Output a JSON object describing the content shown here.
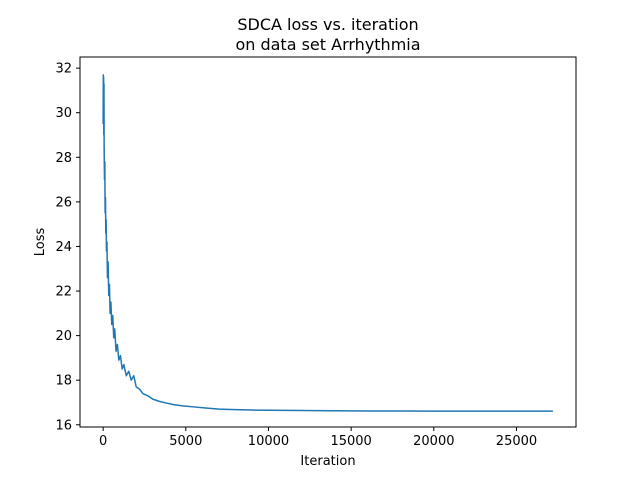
{
  "chart_data": {
    "type": "line",
    "title_lines": [
      "SDCA loss vs. iteration",
      "on data set Arrhythmia"
    ],
    "xlabel": "Iteration",
    "ylabel": "Loss",
    "xlim": [
      -1400,
      28600
    ],
    "ylim": [
      15.9,
      32.5
    ],
    "xticks": [
      0,
      5000,
      10000,
      15000,
      20000,
      25000
    ],
    "xtick_labels": [
      "0",
      "5000",
      "10000",
      "15000",
      "20000",
      "25000"
    ],
    "yticks": [
      16,
      18,
      20,
      22,
      24,
      26,
      28,
      30,
      32
    ],
    "ytick_labels": [
      "16",
      "18",
      "20",
      "22",
      "24",
      "26",
      "28",
      "30",
      "32"
    ],
    "grid": false,
    "line_color": "#1f77b4",
    "series": [
      {
        "x": [
          0,
          10,
          20,
          30,
          40,
          50,
          60,
          80,
          100,
          120,
          140,
          160,
          180,
          200,
          230,
          260,
          300,
          340,
          380,
          420,
          470,
          520,
          580,
          640,
          700,
          780,
          860,
          950,
          1050,
          1150,
          1250,
          1400,
          1550,
          1700,
          1850,
          2000,
          2200,
          2400,
          2700,
          3000,
          3400,
          3800,
          4300,
          4800,
          5500,
          6200,
          7000,
          8000,
          9000,
          10000,
          12000,
          14000,
          16000,
          18000,
          20000,
          22000,
          24000,
          26000,
          27200
        ],
        "y": [
          29.5,
          31.7,
          30.2,
          31.6,
          29.0,
          31.3,
          28.5,
          27.0,
          27.8,
          25.5,
          26.2,
          24.6,
          25.2,
          23.8,
          24.2,
          22.6,
          23.3,
          21.8,
          22.3,
          21.0,
          21.5,
          20.5,
          20.9,
          19.9,
          20.3,
          19.3,
          19.6,
          18.9,
          19.1,
          18.5,
          18.7,
          18.2,
          18.4,
          18.0,
          18.2,
          17.7,
          17.6,
          17.4,
          17.3,
          17.15,
          17.05,
          16.98,
          16.9,
          16.85,
          16.8,
          16.75,
          16.7,
          16.68,
          16.66,
          16.65,
          16.64,
          16.63,
          16.62,
          16.62,
          16.61,
          16.61,
          16.61,
          16.61,
          16.61
        ]
      }
    ]
  }
}
